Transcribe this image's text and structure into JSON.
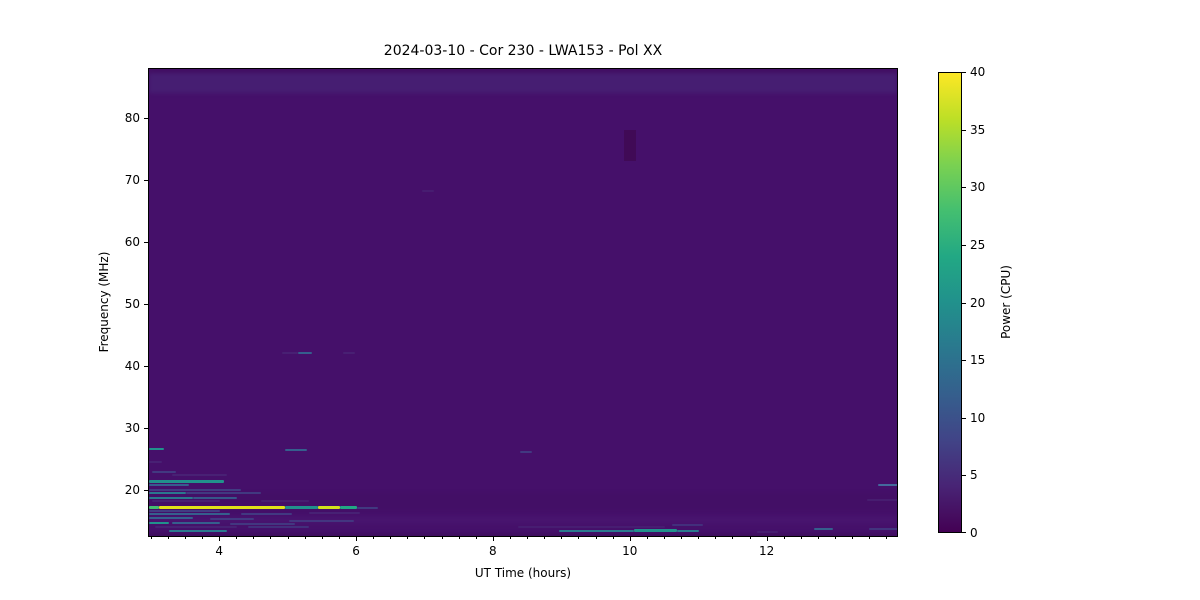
{
  "figure": {
    "title": "2024-03-10 - Cor 230 - LWA153 - Pol XX"
  },
  "chart_data": {
    "type": "heatmap",
    "title": "2024-03-10 - Cor 230 - LWA153 - Pol XX",
    "xlabel": "UT Time (hours)",
    "ylabel": "Frequency (MHz)",
    "xlim": [
      2.96,
      13.92
    ],
    "ylim": [
      12.4,
      88.1
    ],
    "xticks": [
      4,
      6,
      8,
      10,
      12
    ],
    "xminor_step": 0.25,
    "yticks": [
      20,
      30,
      40,
      50,
      60,
      70,
      80
    ],
    "grid": false,
    "background_power": 2,
    "background_color": "#45106a",
    "colorbar": {
      "label": "Power (CPU)",
      "min": 0,
      "max": 40,
      "ticks": [
        0,
        5,
        10,
        15,
        20,
        25,
        30,
        35,
        40
      ]
    },
    "colormap": {
      "name": "viridis",
      "stops": [
        "#440154",
        "#482475",
        "#414487",
        "#355f8d",
        "#2a788e",
        "#21918c",
        "#22a884",
        "#44bf70",
        "#7ad151",
        "#bddf26",
        "#fde725"
      ]
    },
    "bands": [
      {
        "f0": 87.5,
        "f1": 88.1,
        "c": "#400c5b",
        "o": 0.7,
        "note": "dark top edge row"
      },
      {
        "f0": 84.2,
        "f1": 87.5,
        "c": "#472d7b",
        "o": 0.5,
        "note": "elevated power band at top of band, ~4 CPU"
      },
      {
        "f0": 16.8,
        "f1": 19.8,
        "c": "#400d5f",
        "o": 0.3,
        "note": "slightly darker zone near ionospheric cutoff"
      },
      {
        "f0": 14.6,
        "f1": 16.0,
        "c": "#4d1b74",
        "o": 0.4,
        "note": "slightly lighter band near bottom"
      },
      {
        "f0": 12.4,
        "f1": 13.1,
        "c": "#3a0b55",
        "o": 0.8,
        "note": "dark bottom edge"
      }
    ],
    "features": [
      {
        "t0": 2.96,
        "t1": 3.18,
        "f": 26.7,
        "c": "#21918c",
        "p": 20
      },
      {
        "t0": 4.95,
        "t1": 5.27,
        "f": 26.6,
        "c": "#355f8d",
        "p": 12
      },
      {
        "t0": 8.38,
        "t1": 8.55,
        "f": 26.3,
        "c": "#414487",
        "p": 8,
        "o": 0.8
      },
      {
        "t0": 2.96,
        "t1": 3.15,
        "f": 24.6,
        "c": "#482475",
        "p": 5,
        "o": 0.9
      },
      {
        "t0": 3.0,
        "t1": 3.35,
        "f": 23.1,
        "c": "#414487",
        "p": 8,
        "o": 0.8
      },
      {
        "t0": 3.3,
        "t1": 4.1,
        "f": 22.6,
        "c": "#482475",
        "p": 6,
        "o": 0.9
      },
      {
        "t0": 2.96,
        "t1": 4.05,
        "f": 21.5,
        "c": "#21918c",
        "p": 20,
        "h": 3
      },
      {
        "t0": 2.96,
        "t1": 3.55,
        "f": 20.9,
        "c": "#355f8d",
        "p": 12
      },
      {
        "t0": 2.96,
        "t1": 4.3,
        "f": 20.2,
        "c": "#414487",
        "p": 9,
        "o": 0.85
      },
      {
        "t0": 2.96,
        "t1": 3.5,
        "f": 19.6,
        "c": "#2a788e",
        "p": 15
      },
      {
        "t0": 3.5,
        "t1": 4.6,
        "f": 19.6,
        "c": "#414487",
        "p": 8,
        "o": 0.8
      },
      {
        "t0": 2.96,
        "t1": 3.6,
        "f": 18.9,
        "c": "#2a788e",
        "p": 15
      },
      {
        "t0": 3.6,
        "t1": 4.25,
        "f": 18.9,
        "c": "#355f8d",
        "p": 11,
        "o": 0.9
      },
      {
        "t0": 3.0,
        "t1": 4.0,
        "f": 18.3,
        "c": "#482475",
        "p": 5,
        "o": 0.8
      },
      {
        "t0": 4.6,
        "t1": 5.3,
        "f": 18.3,
        "c": "#482475",
        "p": 5,
        "o": 0.7
      },
      {
        "t0": 2.96,
        "t1": 3.1,
        "f": 17.3,
        "c": "#44bf70",
        "p": 28,
        "h": 3
      },
      {
        "t0": 3.1,
        "t1": 4.95,
        "f": 17.3,
        "c": "#dfe318",
        "p": 38,
        "h": 3
      },
      {
        "t0": 4.95,
        "t1": 5.43,
        "f": 17.3,
        "c": "#21918c",
        "p": 21,
        "h": 3
      },
      {
        "t0": 5.43,
        "t1": 5.75,
        "f": 17.3,
        "c": "#d2e21b",
        "p": 36,
        "h": 3
      },
      {
        "t0": 5.75,
        "t1": 6.0,
        "f": 17.3,
        "c": "#22a884",
        "p": 24,
        "h": 3
      },
      {
        "t0": 6.0,
        "t1": 6.3,
        "f": 17.3,
        "c": "#414487",
        "p": 8,
        "o": 0.8
      },
      {
        "t0": 2.96,
        "t1": 4.0,
        "f": 16.8,
        "c": "#414487",
        "p": 9,
        "o": 0.85
      },
      {
        "t0": 2.96,
        "t1": 4.15,
        "f": 16.3,
        "c": "#355f8d",
        "p": 12
      },
      {
        "t0": 4.3,
        "t1": 5.05,
        "f": 16.3,
        "c": "#414487",
        "p": 8,
        "o": 0.8
      },
      {
        "t0": 5.3,
        "t1": 6.05,
        "f": 16.4,
        "c": "#482475",
        "p": 6,
        "o": 0.9
      },
      {
        "t0": 2.96,
        "t1": 3.6,
        "f": 15.6,
        "c": "#355f8d",
        "p": 11
      },
      {
        "t0": 3.85,
        "t1": 4.5,
        "f": 15.5,
        "c": "#414487",
        "p": 8,
        "o": 0.8
      },
      {
        "t0": 5.0,
        "t1": 5.95,
        "f": 15.1,
        "c": "#414487",
        "p": 7,
        "o": 0.7
      },
      {
        "t0": 2.96,
        "t1": 3.25,
        "f": 14.8,
        "c": "#21918c",
        "p": 19
      },
      {
        "t0": 3.3,
        "t1": 4.0,
        "f": 14.8,
        "c": "#355f8d",
        "p": 11
      },
      {
        "t0": 4.15,
        "t1": 5.1,
        "f": 14.7,
        "c": "#414487",
        "p": 7,
        "o": 0.75
      },
      {
        "t0": 3.05,
        "t1": 4.25,
        "f": 14.2,
        "c": "#482475",
        "p": 5,
        "o": 0.85
      },
      {
        "t0": 4.4,
        "t1": 5.3,
        "f": 14.1,
        "c": "#414487",
        "p": 6,
        "o": 0.6
      },
      {
        "t0": 3.25,
        "t1": 4.1,
        "f": 13.5,
        "c": "#2a788e",
        "p": 14
      },
      {
        "t0": 4.9,
        "t1": 5.14,
        "f": 42.2,
        "c": "#482475",
        "p": 5,
        "o": 0.8
      },
      {
        "t0": 5.14,
        "t1": 5.34,
        "f": 42.2,
        "c": "#355f8d",
        "p": 12
      },
      {
        "t0": 5.8,
        "t1": 5.97,
        "f": 42.2,
        "c": "#482475",
        "p": 6,
        "o": 0.8
      },
      {
        "t0": 6.95,
        "t1": 7.12,
        "f": 68.4,
        "c": "#482475",
        "p": 4,
        "o": 0.7
      },
      {
        "t0": 8.95,
        "t1": 10.05,
        "f": 13.6,
        "c": "#2a788e",
        "p": 14
      },
      {
        "t0": 10.05,
        "t1": 10.68,
        "f": 13.6,
        "c": "#21918c",
        "p": 20,
        "h": 3
      },
      {
        "t0": 10.68,
        "t1": 11.0,
        "f": 13.6,
        "c": "#2a788e",
        "p": 14
      },
      {
        "t0": 8.35,
        "t1": 10.5,
        "f": 14.1,
        "c": "#482475",
        "p": 5,
        "o": 0.7
      },
      {
        "t0": 10.6,
        "t1": 11.05,
        "f": 14.5,
        "c": "#414487",
        "p": 7,
        "o": 0.6
      },
      {
        "t0": 13.62,
        "t1": 13.92,
        "f": 21.0,
        "c": "#44699c",
        "p": 13
      },
      {
        "t0": 13.45,
        "t1": 13.92,
        "f": 18.5,
        "c": "#482475",
        "p": 5,
        "o": 0.7
      },
      {
        "t0": 12.68,
        "t1": 12.95,
        "f": 13.8,
        "c": "#355f8d",
        "p": 11
      },
      {
        "t0": 13.48,
        "t1": 13.92,
        "f": 13.8,
        "c": "#414487",
        "p": 7,
        "o": 0.7
      },
      {
        "t0": 11.85,
        "t1": 12.15,
        "f": 13.3,
        "c": "#482475",
        "p": 5,
        "o": 0.7
      }
    ],
    "rects": [
      {
        "t0": 9.9,
        "t1": 10.08,
        "f0": 73.2,
        "f1": 78.2,
        "c": "#400a56",
        "p": 0,
        "note": "dropout / flagged block"
      }
    ]
  }
}
